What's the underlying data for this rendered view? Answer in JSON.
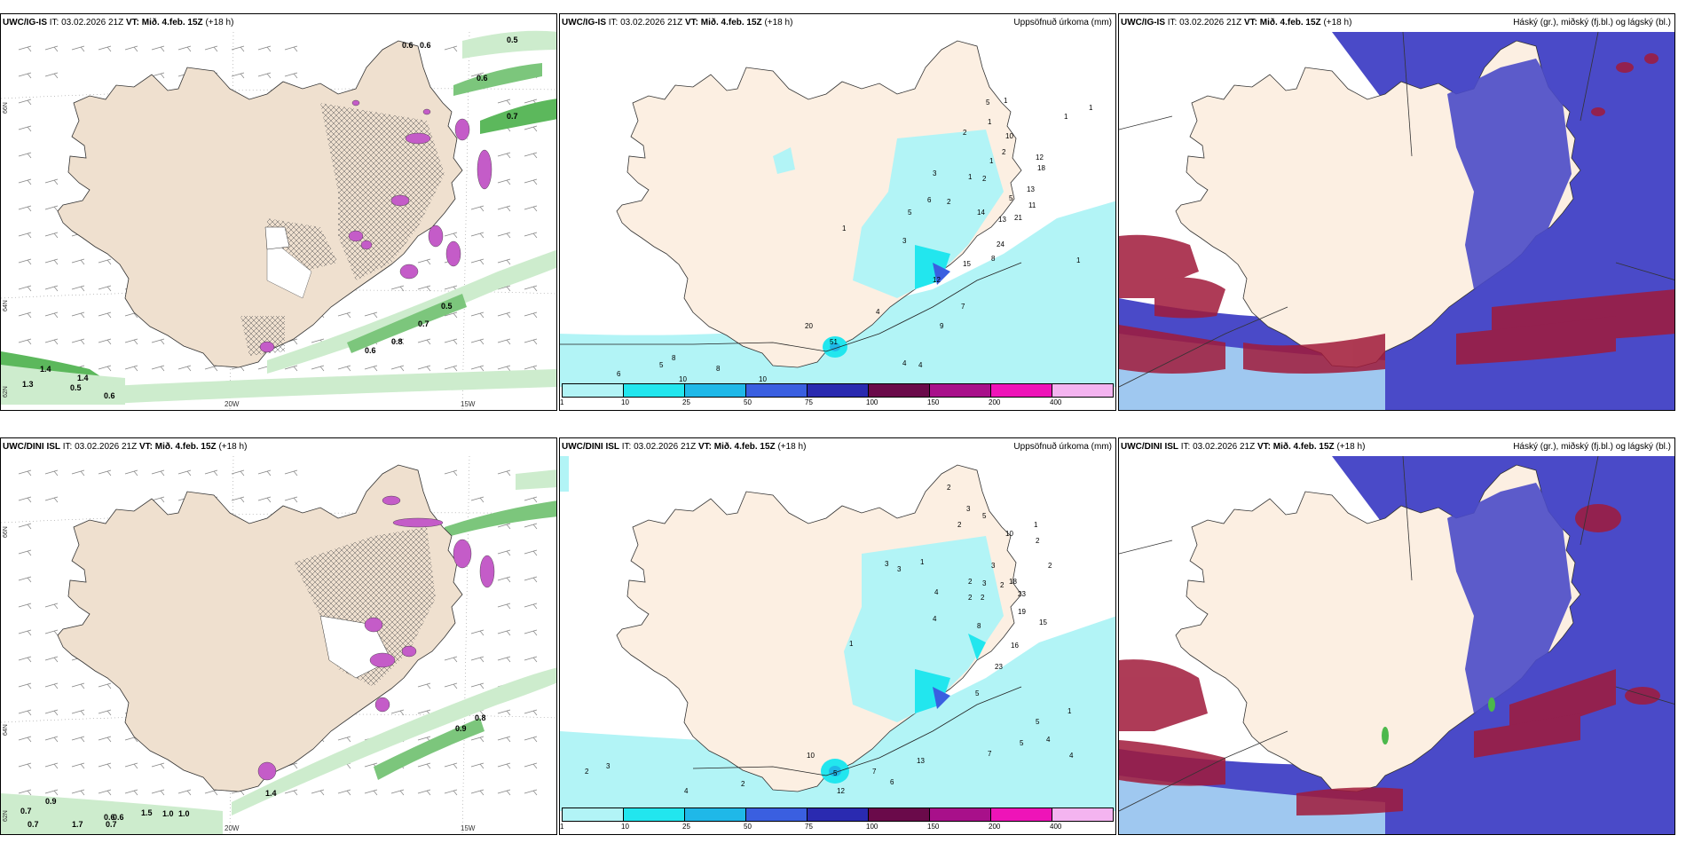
{
  "panels": [
    {
      "model": "UWC/IG-IS",
      "it_label": "IT:",
      "it_value": "03.02.2026 21Z",
      "vt_label": "VT:",
      "vt_value": "Mið. 4.feb. 15Z",
      "lead": "(+18 h)",
      "right_title": "",
      "lon_labels": [
        "20W",
        "15W"
      ],
      "lat_labels": [
        "66N",
        "64N",
        "62N"
      ],
      "green_values": [
        "0.6",
        "0.6",
        "0.5",
        "0.6",
        "0.7",
        "0.5",
        "0.7",
        "0.8",
        "0.6",
        "1.4",
        "1.4",
        "1.3",
        "0.5",
        "0.6"
      ]
    },
    {
      "model": "UWC/IG-IS",
      "it_label": "IT:",
      "it_value": "03.02.2026 21Z",
      "vt_label": "VT:",
      "vt_value": "Mið. 4.feb. 15Z",
      "lead": "(+18 h)",
      "right_title": "Uppsöfnuð úrkoma (mm)",
      "precip_values": [
        "1",
        "1",
        "5",
        "2",
        "10",
        "2",
        "1",
        "3",
        "1",
        "2",
        "12",
        "18",
        "13",
        "5",
        "14",
        "13",
        "21",
        "24",
        "11",
        "5",
        "3",
        "2",
        "6",
        "1",
        "15",
        "12",
        "8",
        "7",
        "9",
        "4",
        "51",
        "20",
        "8",
        "8",
        "5",
        "6",
        "10",
        "10",
        "4",
        "4",
        "1",
        "1",
        "1"
      ],
      "legend_ticks": [
        "1",
        "10",
        "25",
        "50",
        "75",
        "100",
        "150",
        "200",
        "400"
      ]
    },
    {
      "model": "UWC/IG-IS",
      "it_label": "IT:",
      "it_value": "03.02.2026 21Z",
      "vt_label": "VT:",
      "vt_value": "Mið. 4.feb. 15Z",
      "lead": "(+18 h)",
      "right_title": "Háský (gr.), miðský (fj.bl.) og lágský (bl.)"
    },
    {
      "model": "UWC/DINI ISL",
      "it_label": "IT:",
      "it_value": "03.02.2026 21Z",
      "vt_label": "VT:",
      "vt_value": "Mið. 4.feb. 15Z",
      "lead": "(+18 h)",
      "right_title": "",
      "lon_labels": [
        "20W",
        "15W"
      ],
      "lat_labels": [
        "66N",
        "64N",
        "62N"
      ],
      "green_values": [
        "0.9",
        "0.8",
        "1.4",
        "0.9",
        "0.7",
        "0.7",
        "1.7",
        "1.0",
        "0.6",
        "0.6",
        "1.5",
        "1.0",
        "0.7"
      ]
    },
    {
      "model": "UWC/DINI ISL",
      "it_label": "IT:",
      "it_value": "03.02.2026 21Z",
      "vt_label": "VT:",
      "vt_value": "Mið. 4.feb. 15Z",
      "lead": "(+18 h)",
      "right_title": "Uppsöfnuð úrkoma (mm)",
      "precip_values": [
        "2",
        "3",
        "5",
        "2",
        "10",
        "1",
        "2",
        "3",
        "3",
        "1",
        "2",
        "4",
        "3",
        "18",
        "2",
        "23",
        "19",
        "15",
        "16",
        "23",
        "8",
        "4",
        "2",
        "2",
        "3",
        "2",
        "1",
        "5",
        "13",
        "10",
        "5",
        "7",
        "12",
        "6",
        "7",
        "5",
        "4",
        "2",
        "3",
        "2",
        "4",
        "5",
        "1",
        "4"
      ],
      "legend_ticks": [
        "1",
        "10",
        "25",
        "50",
        "75",
        "100",
        "150",
        "200",
        "400"
      ]
    },
    {
      "model": "UWC/DINI ISL",
      "it_label": "IT:",
      "it_value": "03.02.2026 21Z",
      "vt_label": "VT:",
      "vt_value": "Mið. 4.feb. 15Z",
      "lead": "(+18 h)",
      "right_title": "Háský (gr.), miðský (fj.bl.) og lágský (bl.)"
    }
  ],
  "colors": {
    "land": "#f5e6d8",
    "land_wind": "#ecd9c6",
    "precip_light": "#aef4f7",
    "precip_cyan": "#22e6ee",
    "precip_mid": "#1fb8e8",
    "precip_blue": "#3a5fe0",
    "precip_dark": "#2a2ab0",
    "precip_maroon": "#6a0a4a",
    "precip_purple": "#a8108a",
    "precip_magenta": "#ee14b8",
    "precip_pink": "#f4b4f0",
    "high_cloud": "#8a1a3a",
    "mid_cloud": "#4040b8",
    "low_cloud": "#3a3ad0",
    "green_light": "#c8ecc8",
    "green": "#5cb85c"
  }
}
